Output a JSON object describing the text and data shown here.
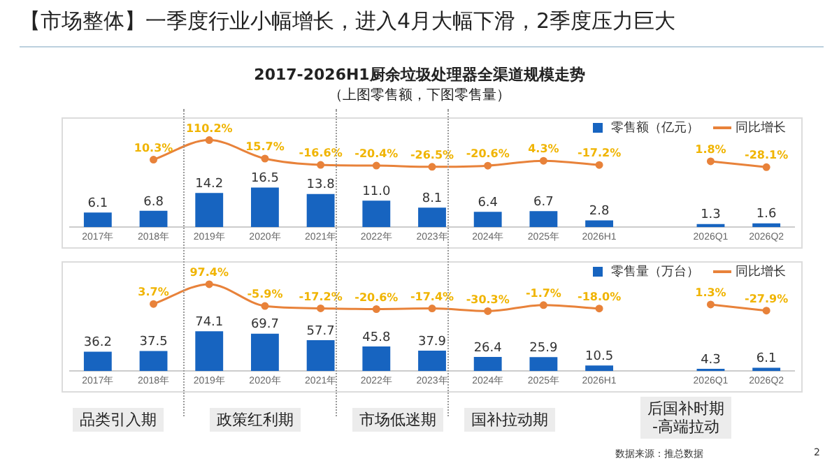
{
  "chart_data": [
    {
      "type": "bar",
      "title": "2017-2026H1厨余垃圾处理器全渠道规模走势",
      "subtitle": "（上图零售额，下图零售量）",
      "annotations": [
        "【市场整体】一季度行业小幅增长，进入4月大幅下滑，2季度压力巨大"
      ],
      "categories": [
        "2017年",
        "2018年",
        "2019年",
        "2020年",
        "2021年",
        "2022年",
        "2023年",
        "2024年",
        "2025年",
        "2026H1",
        null,
        "2026Q1",
        "2026Q2"
      ],
      "series": [
        {
          "name": "零售额（亿元）",
          "type": "bar",
          "color": "#1764c0",
          "values": [
            6.1,
            6.8,
            14.2,
            16.5,
            13.8,
            11.0,
            8.1,
            6.4,
            6.7,
            2.8,
            null,
            1.3,
            1.6
          ],
          "value_labels": [
            "6.1",
            "6.8",
            "14.2",
            "16.5",
            "13.8",
            "11.0",
            "8.1",
            "6.4",
            "6.7",
            "2.8",
            null,
            "1.3",
            "1.6"
          ]
        },
        {
          "name": "同比增长",
          "type": "line",
          "axis": "y2",
          "color": "#e8823a",
          "values": [
            null,
            10.3,
            110.2,
            15.7,
            -16.6,
            -20.4,
            -26.5,
            -20.6,
            4.3,
            -17.2,
            null,
            1.8,
            -28.1
          ],
          "value_labels": [
            null,
            "10.3%",
            "110.2%",
            "15.7%",
            "-16.6%",
            "-20.4%",
            "-26.5%",
            "-20.6%",
            "4.3%",
            "-17.2%",
            null,
            "1.8%",
            "-28.1%"
          ]
        }
      ],
      "ylim": [
        0,
        46
      ],
      "y2lim": [
        -335,
        230
      ],
      "legend": "top right",
      "marker": "circle",
      "grid": false
    },
    {
      "type": "bar",
      "annotations": [
        "品类引入期",
        "政策红利期",
        "市场低迷期",
        "国补拉动期",
        "后国补时期\n-高端拉动",
        "数据来源：推总数据",
        "2"
      ],
      "categories": [
        "2017年",
        "2018年",
        "2019年",
        "2020年",
        "2021年",
        "2022年",
        "2023年",
        "2024年",
        "2025年",
        "2026H1",
        null,
        "2026Q1",
        "2026Q2"
      ],
      "series": [
        {
          "name": "零售量（万台）",
          "type": "bar",
          "color": "#1764c0",
          "values": [
            36.2,
            37.5,
            74.1,
            69.7,
            57.7,
            45.8,
            37.9,
            26.4,
            25.9,
            10.5,
            null,
            4.3,
            6.1
          ],
          "value_labels": [
            "36.2",
            "37.5",
            "74.1",
            "69.7",
            "57.7",
            "45.8",
            "37.9",
            "26.4",
            "25.9",
            "10.5",
            null,
            "4.3",
            "6.1"
          ]
        },
        {
          "name": "同比增长",
          "type": "line",
          "axis": "y2",
          "color": "#e8823a",
          "values": [
            null,
            3.7,
            97.4,
            -5.9,
            -17.2,
            -20.6,
            -17.4,
            -30.3,
            -1.7,
            -18.0,
            null,
            1.3,
            -27.9
          ],
          "value_labels": [
            null,
            "3.7%",
            "97.4%",
            "-5.9%",
            "-17.2%",
            "-20.6%",
            "-17.4%",
            "-30.3%",
            "-1.7%",
            "-18.0%",
            null,
            "1.3%",
            "-27.9%"
          ]
        }
      ],
      "ylim": [
        0,
        206
      ],
      "y2lim": [
        -315,
        210
      ],
      "legend": "top right",
      "marker": "circle",
      "grid": false
    }
  ]
}
